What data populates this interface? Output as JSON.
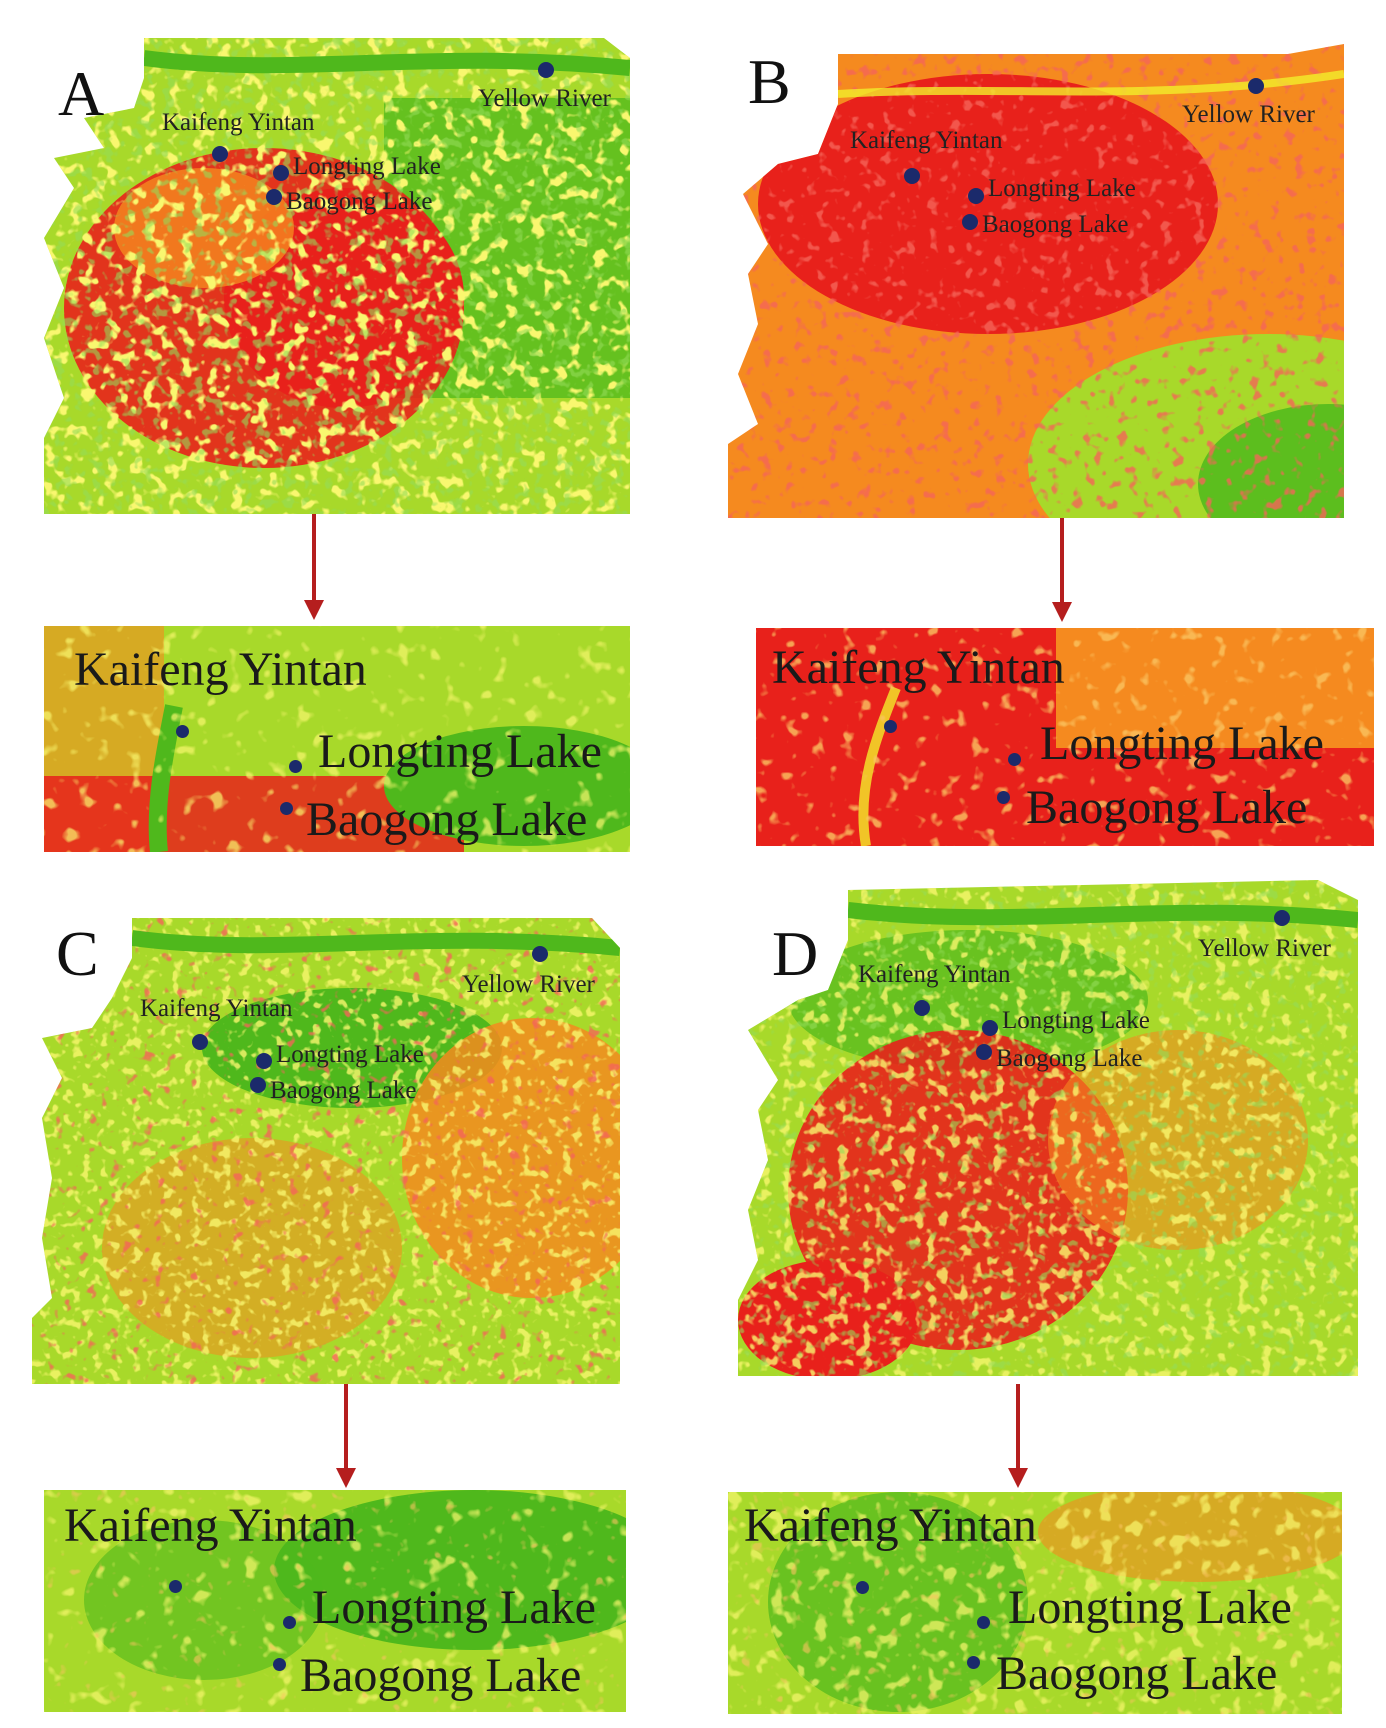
{
  "figure": {
    "panels": [
      {
        "id": "A",
        "letter": "A",
        "palette": "mixed-red-west",
        "labels": {
          "kaifeng_yintan": "Kaifeng Yintan",
          "longting_lake": "Longting Lake",
          "baogong_lake": "Baogong Lake",
          "yellow_river": "Yellow River"
        },
        "zoom_labels": {
          "kaifeng_yintan": "Kaifeng Yintan",
          "longting_lake": "Longting Lake",
          "baogong_lake": "Baogong Lake"
        }
      },
      {
        "id": "B",
        "letter": "B",
        "palette": "hot",
        "labels": {
          "kaifeng_yintan": "Kaifeng Yintan",
          "longting_lake": "Longting Lake",
          "baogong_lake": "Baogong Lake",
          "yellow_river": "Yellow River"
        },
        "zoom_labels": {
          "kaifeng_yintan": "Kaifeng Yintan",
          "longting_lake": "Longting Lake",
          "baogong_lake": "Baogong Lake"
        }
      },
      {
        "id": "C",
        "letter": "C",
        "palette": "cool",
        "labels": {
          "kaifeng_yintan": "Kaifeng Yintan",
          "longting_lake": "Longting Lake",
          "baogong_lake": "Baogong Lake",
          "yellow_river": "Yellow River"
        },
        "zoom_labels": {
          "kaifeng_yintan": "Kaifeng Yintan",
          "longting_lake": "Longting Lake",
          "baogong_lake": "Baogong Lake"
        }
      },
      {
        "id": "D",
        "letter": "D",
        "palette": "mixed-red-center",
        "labels": {
          "kaifeng_yintan": "Kaifeng Yintan",
          "longting_lake": "Longting Lake",
          "baogong_lake": "Baogong Lake",
          "yellow_river": "Yellow River"
        },
        "zoom_labels": {
          "kaifeng_yintan": "Kaifeng Yintan",
          "longting_lake": "Longting Lake",
          "baogong_lake": "Baogong Lake"
        }
      }
    ],
    "colors": {
      "red": "#e8211b",
      "orange": "#f58a1f",
      "yellow": "#f2ee2a",
      "lime": "#a8d92a",
      "green": "#4fb81c",
      "marker": "#1b2a6b",
      "arrow": "#b51e1e"
    }
  }
}
